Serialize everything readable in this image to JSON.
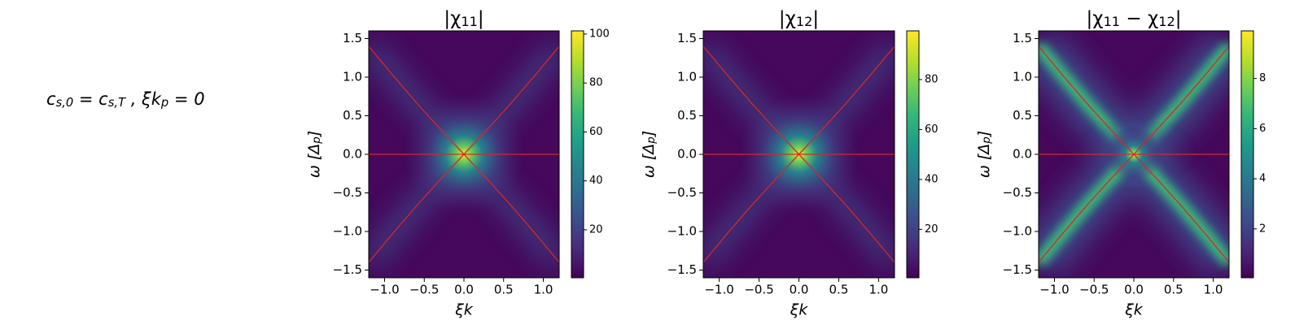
{
  "annotation": [
    "c",
    "s,0",
    " = c",
    "s,T",
    "   ,   ξk",
    "p",
    " = 0"
  ],
  "chart_data": [
    {
      "type": "heatmap",
      "title": [
        "|χ",
        "11",
        "|"
      ],
      "xlabel": "ξk",
      "ylabel": [
        "ω [Δ",
        "p",
        "]"
      ],
      "xlim": [
        -1.2,
        1.2
      ],
      "ylim": [
        -1.6,
        1.6
      ],
      "xticks": [
        {
          "value": -1.0,
          "label": "−1.0"
        },
        {
          "value": -0.5,
          "label": "−0.5"
        },
        {
          "value": 0,
          "label": "0.0"
        },
        {
          "value": 0.5,
          "label": "0.5"
        },
        {
          "value": 1.0,
          "label": "1.0"
        }
      ],
      "yticks": [
        {
          "value": -1.5,
          "label": "−1.5"
        },
        {
          "value": -1.0,
          "label": "−1.0"
        },
        {
          "value": -0.5,
          "label": "−0.5"
        },
        {
          "value": 0,
          "label": "0.0"
        },
        {
          "value": 0.5,
          "label": "0.5"
        },
        {
          "value": 1.0,
          "label": "1.0"
        },
        {
          "value": 1.5,
          "label": "1.5"
        }
      ],
      "clim": [
        0.4,
        101.3
      ],
      "cticks": [
        20,
        40,
        60,
        80,
        100
      ],
      "series": [
        {
          "color": "#d62728",
          "x": [
            -1.2,
            -0.9,
            -0.6,
            -0.3,
            0,
            0.3,
            0.6,
            0.9,
            1.2
          ],
          "values": [
            1.4,
            1.03,
            0.67,
            0.33,
            0,
            0.33,
            0.67,
            1.03,
            1.4
          ]
        },
        {
          "color": "#d62728",
          "x": [
            -1.2,
            -0.9,
            -0.6,
            -0.3,
            0,
            0.3,
            0.6,
            0.9,
            1.2
          ],
          "values": [
            -1.4,
            -1.03,
            -0.67,
            -0.33,
            0,
            -0.33,
            -0.67,
            -1.03,
            -1.4
          ]
        },
        {
          "color": "#d62728",
          "x": [
            -1.2,
            1.2
          ],
          "values": [
            0,
            0
          ]
        }
      ]
    },
    {
      "type": "heatmap",
      "title": [
        "|χ",
        "12",
        "|"
      ],
      "xlabel": "ξk",
      "ylabel": [
        "ω [Δ",
        "p",
        "]"
      ],
      "xlim": [
        -1.2,
        1.2
      ],
      "ylim": [
        -1.6,
        1.6
      ],
      "xticks": [
        {
          "value": -1.0,
          "label": "−1.0"
        },
        {
          "value": -0.5,
          "label": "−0.5"
        },
        {
          "value": 0,
          "label": "0.0"
        },
        {
          "value": 0.5,
          "label": "0.5"
        },
        {
          "value": 1.0,
          "label": "1.0"
        }
      ],
      "yticks": [
        {
          "value": -1.5,
          "label": "−1.5"
        },
        {
          "value": -1.0,
          "label": "−1.0"
        },
        {
          "value": -0.5,
          "label": "−0.5"
        },
        {
          "value": 0,
          "label": "0.0"
        },
        {
          "value": 0.5,
          "label": "0.5"
        },
        {
          "value": 1.0,
          "label": "1.0"
        },
        {
          "value": 1.5,
          "label": "1.5"
        }
      ],
      "clim": [
        0.6,
        99.5
      ],
      "cticks": [
        20,
        40,
        60,
        80
      ],
      "series": [
        {
          "color": "#d62728",
          "x": [
            -1.2,
            -0.9,
            -0.6,
            -0.3,
            0,
            0.3,
            0.6,
            0.9,
            1.2
          ],
          "values": [
            1.4,
            1.03,
            0.67,
            0.33,
            0,
            0.33,
            0.67,
            1.03,
            1.4
          ]
        },
        {
          "color": "#d62728",
          "x": [
            -1.2,
            -0.9,
            -0.6,
            -0.3,
            0,
            0.3,
            0.6,
            0.9,
            1.2
          ],
          "values": [
            -1.4,
            -1.03,
            -0.67,
            -0.33,
            0,
            -0.33,
            -0.67,
            -1.03,
            -1.4
          ]
        },
        {
          "color": "#d62728",
          "x": [
            -1.2,
            1.2
          ],
          "values": [
            0,
            0
          ]
        }
      ]
    },
    {
      "type": "heatmap",
      "title": [
        "|χ",
        "11",
        " − χ",
        "12",
        "|"
      ],
      "xlabel": "ξk",
      "ylabel": [
        "ω [Δ",
        "p",
        "]"
      ],
      "xlim": [
        -1.2,
        1.2
      ],
      "ylim": [
        -1.6,
        1.6
      ],
      "xticks": [
        {
          "value": -1.0,
          "label": "−1.0"
        },
        {
          "value": -0.5,
          "label": "−0.5"
        },
        {
          "value": 0,
          "label": "0.0"
        },
        {
          "value": 0.5,
          "label": "0.5"
        },
        {
          "value": 1.0,
          "label": "1.0"
        }
      ],
      "yticks": [
        {
          "value": -1.5,
          "label": "−1.5"
        },
        {
          "value": -1.0,
          "label": "−1.0"
        },
        {
          "value": -0.5,
          "label": "−0.5"
        },
        {
          "value": 0,
          "label": "0.0"
        },
        {
          "value": 0.5,
          "label": "0.5"
        },
        {
          "value": 1.0,
          "label": "1.0"
        },
        {
          "value": 1.5,
          "label": "1.5"
        }
      ],
      "clim": [
        0.05,
        9.9
      ],
      "cticks": [
        2,
        4,
        6,
        8
      ],
      "series": [
        {
          "color": "#d62728",
          "x": [
            -1.2,
            -0.9,
            -0.6,
            -0.3,
            0,
            0.3,
            0.6,
            0.9,
            1.2
          ],
          "values": [
            1.4,
            1.03,
            0.67,
            0.33,
            0,
            0.33,
            0.67,
            1.03,
            1.4
          ]
        },
        {
          "color": "#d62728",
          "x": [
            -1.2,
            -0.9,
            -0.6,
            -0.3,
            0,
            0.3,
            0.6,
            0.9,
            1.2
          ],
          "values": [
            -1.4,
            -1.03,
            -0.67,
            -0.33,
            0,
            -0.33,
            -0.67,
            -1.03,
            -1.4
          ]
        },
        {
          "color": "#d62728",
          "x": [
            -1.2,
            1.2
          ],
          "values": [
            0,
            0
          ]
        }
      ]
    }
  ]
}
